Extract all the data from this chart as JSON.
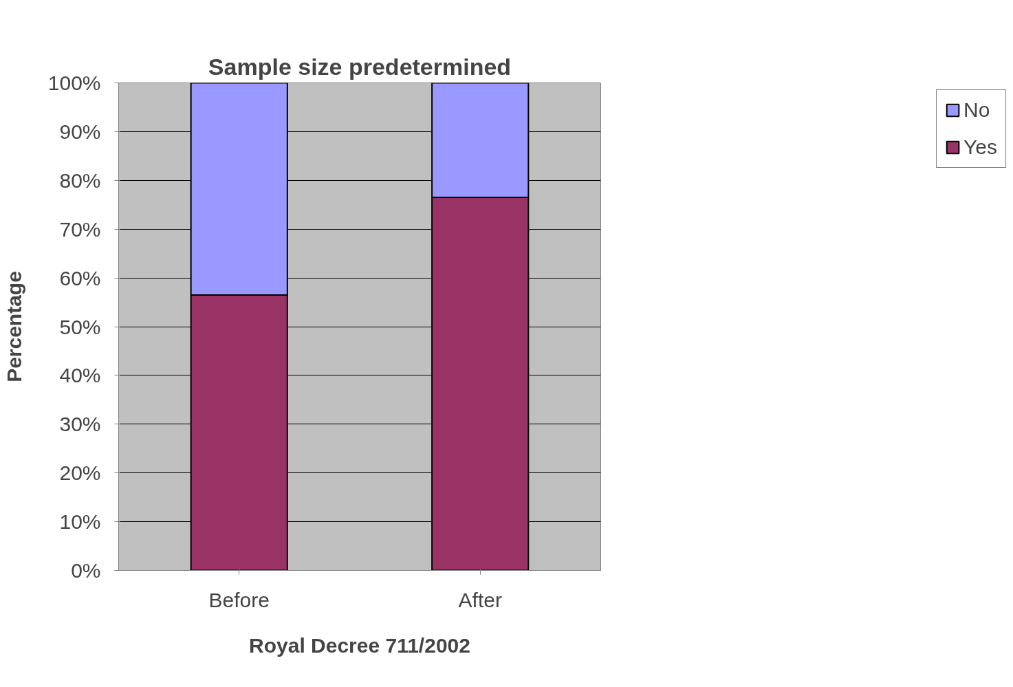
{
  "chart_data": {
    "type": "bar",
    "stacked": true,
    "title": "Sample size predetermined",
    "xlabel": "Royal Decree 711/2002",
    "ylabel": "Percentage",
    "categories": [
      "Before",
      "After"
    ],
    "series": [
      {
        "name": "Yes",
        "color": "#993366",
        "values": [
          56.5,
          76.5
        ]
      },
      {
        "name": "No",
        "color": "#9999ff",
        "values": [
          43.5,
          23.5
        ]
      }
    ],
    "ylim": [
      0,
      100
    ],
    "yticks": [
      {
        "value": 0,
        "label": "0%"
      },
      {
        "value": 10,
        "label": "10%"
      },
      {
        "value": 20,
        "label": "20%"
      },
      {
        "value": 30,
        "label": "30%"
      },
      {
        "value": 40,
        "label": "40%"
      },
      {
        "value": 50,
        "label": "50%"
      },
      {
        "value": 60,
        "label": "60%"
      },
      {
        "value": 70,
        "label": "70%"
      },
      {
        "value": 80,
        "label": "80%"
      },
      {
        "value": 90,
        "label": "90%"
      },
      {
        "value": 100,
        "label": "100%"
      }
    ],
    "grid": "y",
    "legend": "right"
  }
}
